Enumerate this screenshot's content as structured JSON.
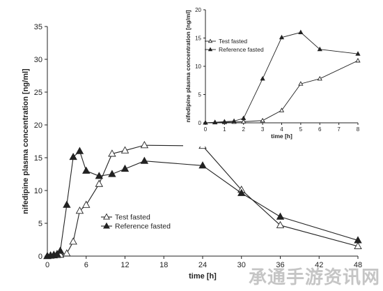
{
  "chart_data": [
    {
      "type": "line",
      "title": "",
      "xlabel": "time [h]",
      "ylabel": "nifedipine plasma concentration [ng/ml]",
      "xlim": [
        0,
        48
      ],
      "ylim": [
        0,
        35
      ],
      "xticks": [
        0,
        6,
        12,
        18,
        24,
        30,
        36,
        42,
        48
      ],
      "yticks": [
        0,
        5,
        10,
        15,
        20,
        25,
        30,
        35
      ],
      "legend_position": "center-left",
      "series": [
        {
          "name": "Test fasted",
          "marker": "open-triangle",
          "x": [
            0,
            0.5,
            1,
            1.5,
            2,
            3,
            4,
            5,
            6,
            8,
            10,
            12,
            15,
            24,
            30,
            36,
            48
          ],
          "y": [
            0,
            0.05,
            0.1,
            0.15,
            0.2,
            0.4,
            2.2,
            6.9,
            7.8,
            11.0,
            15.6,
            16.1,
            16.9,
            16.8,
            10.1,
            4.7,
            1.5
          ]
        },
        {
          "name": "Reference fasted",
          "marker": "filled-triangle",
          "x": [
            0,
            0.5,
            1,
            1.5,
            2,
            3,
            4,
            5,
            6,
            8,
            10,
            12,
            15,
            24,
            30,
            36,
            48
          ],
          "y": [
            0,
            0.1,
            0.2,
            0.3,
            0.8,
            7.8,
            15.1,
            16.0,
            13.0,
            12.2,
            12.5,
            13.3,
            14.5,
            13.8,
            9.6,
            6.0,
            2.4
          ]
        }
      ]
    },
    {
      "type": "line",
      "title": "",
      "xlabel": "time [h]",
      "ylabel": "nifedipine plasma concentration [ng/ml]",
      "xlim": [
        0,
        8
      ],
      "ylim": [
        0,
        20
      ],
      "xticks": [
        0,
        1,
        2,
        3,
        4,
        5,
        6,
        7,
        8
      ],
      "yticks": [
        0,
        5,
        10,
        15,
        20
      ],
      "legend_position": "top-left",
      "series": [
        {
          "name": "Test fasted",
          "marker": "open-triangle",
          "x": [
            0,
            0.5,
            1,
            1.5,
            2,
            3,
            4,
            5,
            6,
            8
          ],
          "y": [
            0,
            0.05,
            0.1,
            0.15,
            0.2,
            0.4,
            2.2,
            6.9,
            7.8,
            11.0
          ]
        },
        {
          "name": "Reference fasted",
          "marker": "filled-triangle",
          "x": [
            0,
            0.5,
            1,
            1.5,
            2,
            3,
            4,
            5,
            6,
            8
          ],
          "y": [
            0,
            0.1,
            0.2,
            0.3,
            0.8,
            7.8,
            15.1,
            16.0,
            13.0,
            12.2
          ]
        }
      ]
    }
  ],
  "watermark": "承通手游资讯网"
}
